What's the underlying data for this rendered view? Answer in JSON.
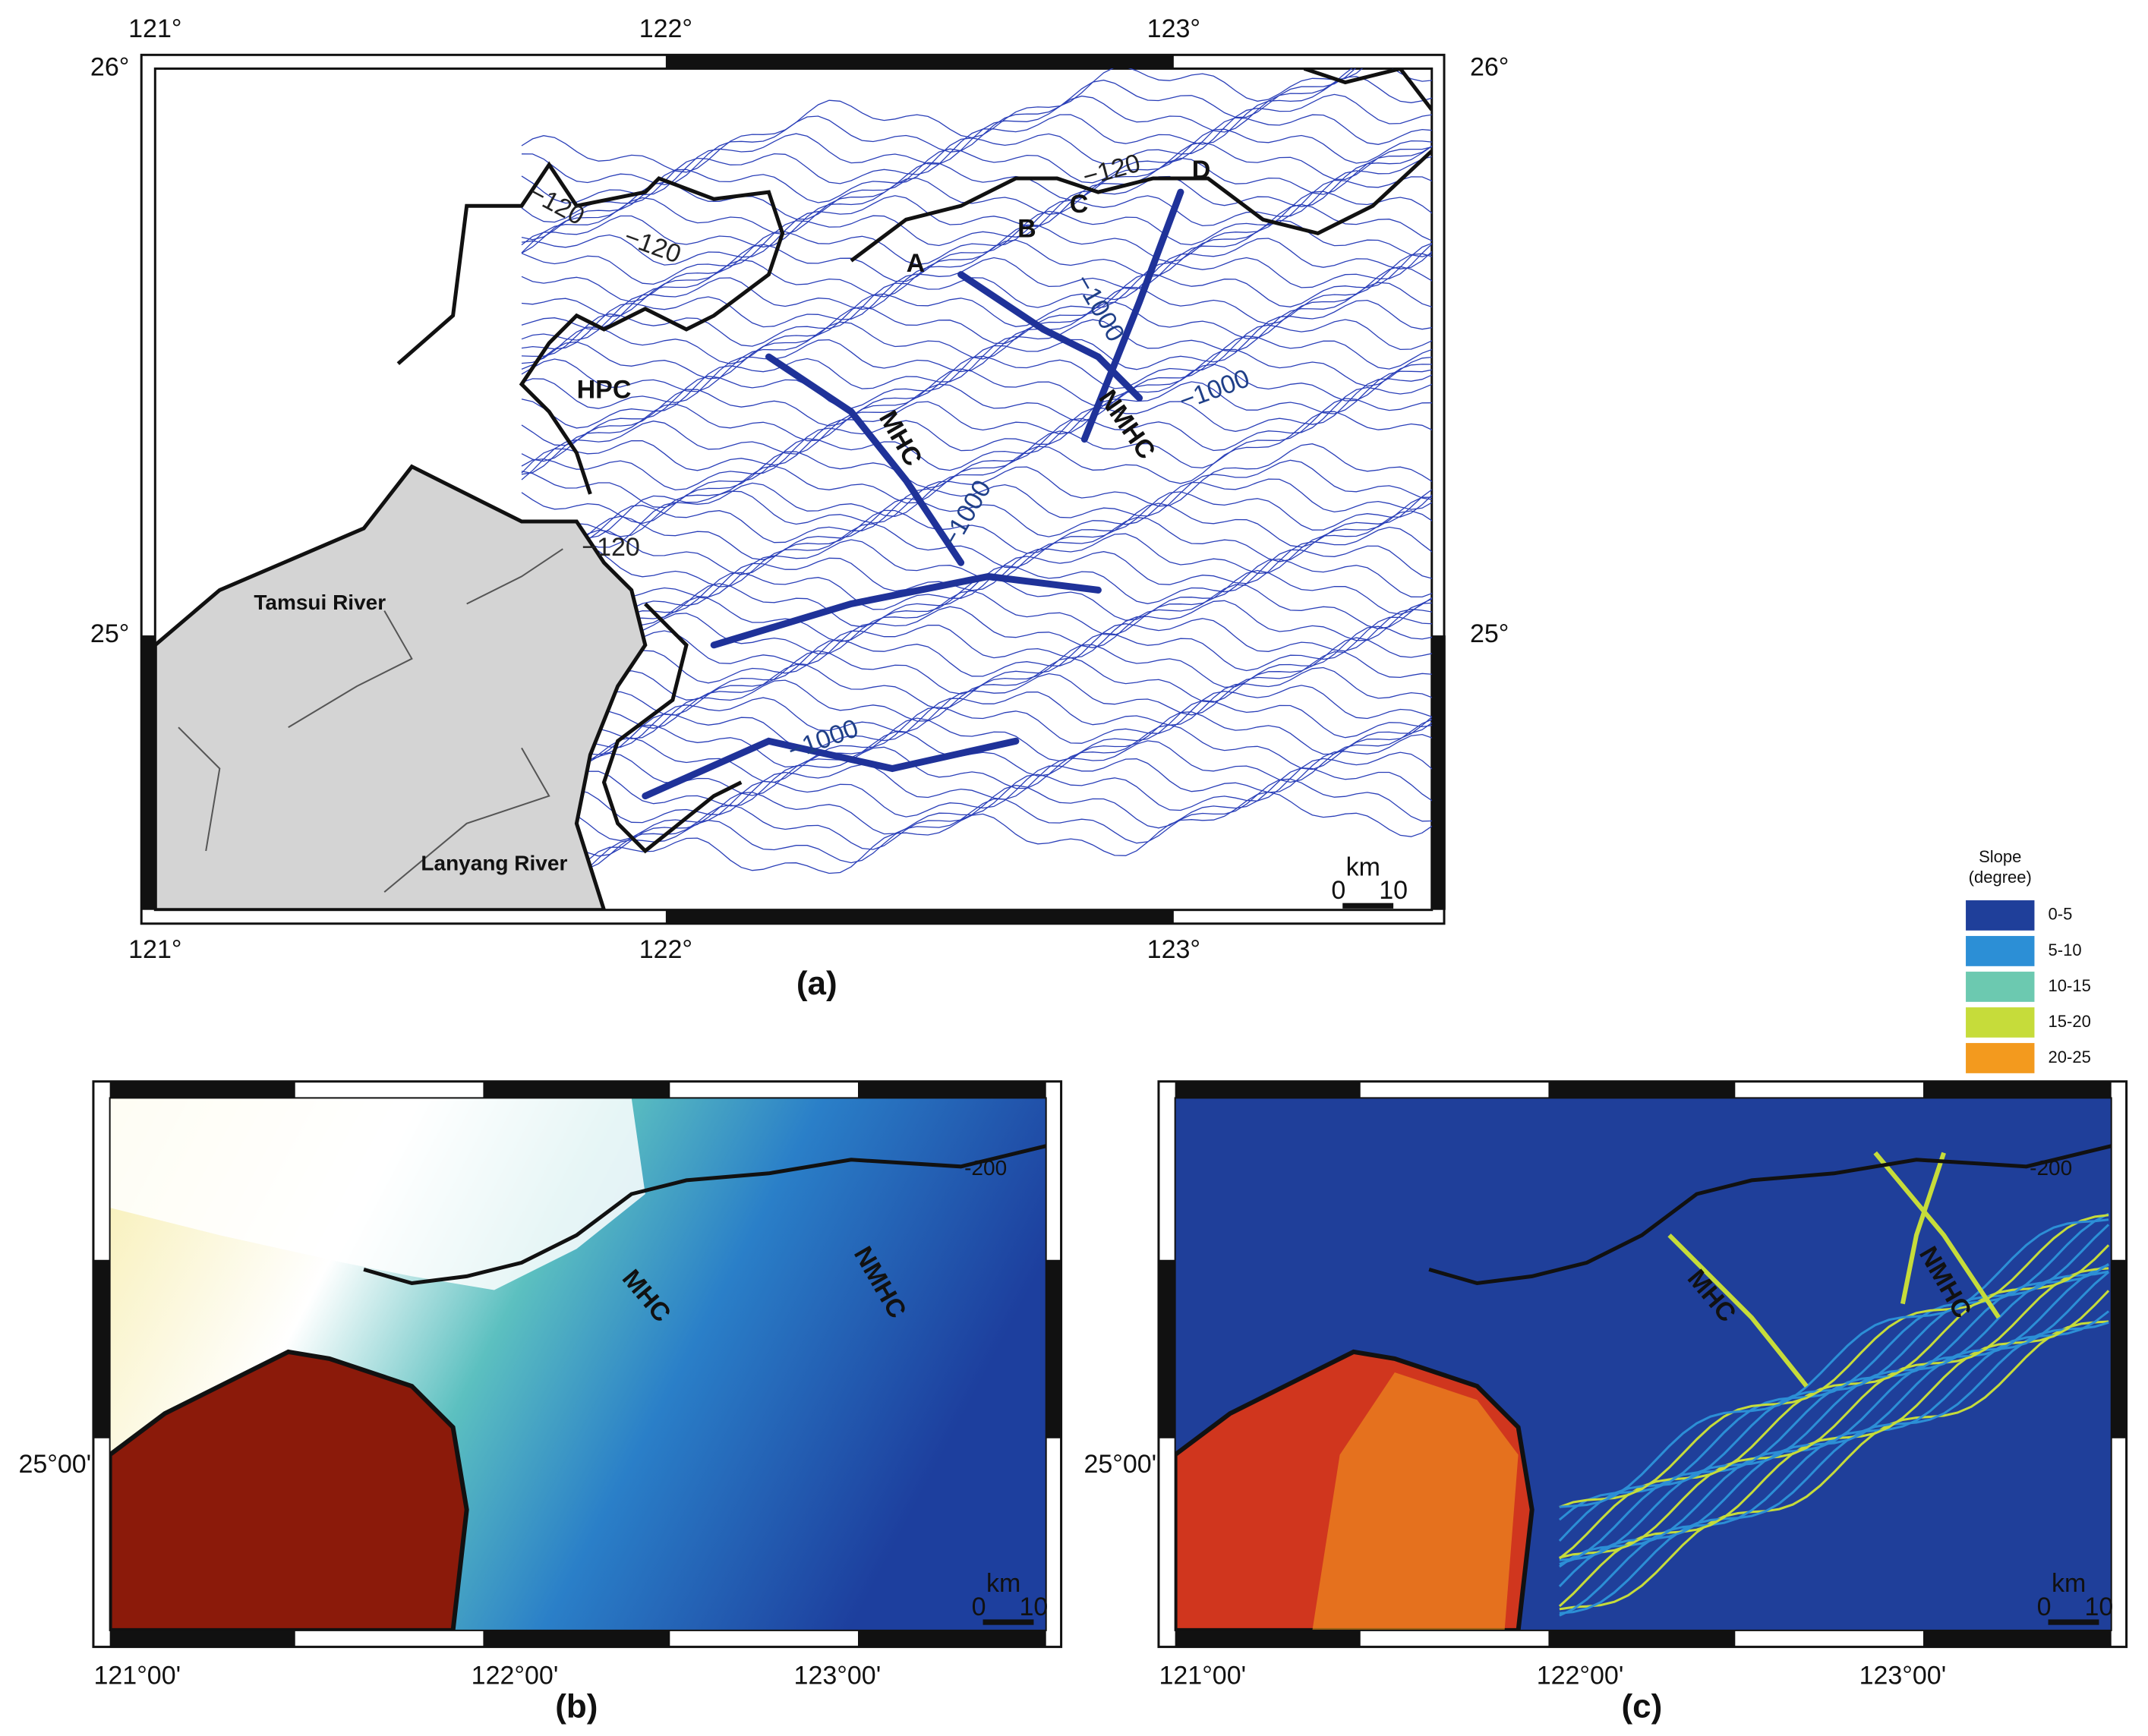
{
  "figure": {
    "panel_a": {
      "label": "(a)",
      "top_labels": [
        "121°",
        "122°",
        "123°"
      ],
      "bottom_labels": [
        "121°",
        "122°",
        "123°"
      ],
      "left_labels": [
        "26°",
        "25°"
      ],
      "right_labels": [
        "26°",
        "25°"
      ],
      "annotations": [
        "−120",
        "−120",
        "−120",
        "−120",
        "−1000",
        "−1000",
        "−1000",
        "−1000",
        "A",
        "B",
        "C",
        "D",
        "HPC",
        "MHC",
        "NMHC",
        "Tamsui River",
        "Lanyang River"
      ],
      "scale_bar": {
        "unit": "km",
        "start": 0,
        "end": 10
      }
    },
    "panel_b": {
      "label": "(b)",
      "left_labels": [
        "25°00'"
      ],
      "bottom_labels": [
        "121°00'",
        "122°00'",
        "123°00'"
      ],
      "annotations": [
        "-200",
        "MHC",
        "NMHC"
      ],
      "scale_bar": {
        "unit": "km",
        "start": 0,
        "end": 10
      }
    },
    "panel_c": {
      "label": "(c)",
      "left_labels": [
        "25°00'"
      ],
      "bottom_labels": [
        "121°00'",
        "122°00'",
        "123°00'"
      ],
      "annotations": [
        "-200",
        "MHC",
        "NMHC"
      ],
      "scale_bar": {
        "unit": "km",
        "start": 0,
        "end": 10
      }
    },
    "legend": {
      "title": "Slope",
      "subtitle": "(degree)",
      "items": [
        {
          "label": "0-5",
          "color": "#1f3f9a"
        },
        {
          "label": "5-10",
          "color": "#2c8fd6"
        },
        {
          "label": "10-15",
          "color": "#6cc9b0"
        },
        {
          "label": "15-20",
          "color": "#c6dc3a"
        },
        {
          "label": "20-25",
          "color": "#f39a1e"
        }
      ]
    }
  }
}
